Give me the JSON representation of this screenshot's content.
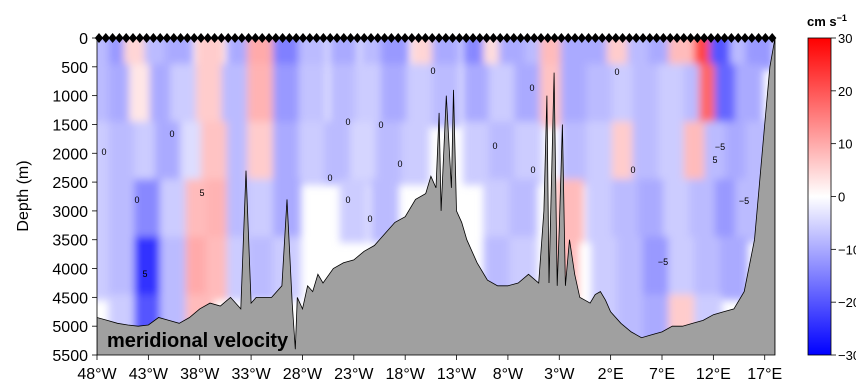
{
  "chart_data": {
    "type": "heatmap",
    "panel_label": "meridional velocity",
    "ylabel": "Depth (m)",
    "colorbar_unit": "cm s",
    "colorbar_unit_exp": "−1",
    "x_ticks": [
      "48°W",
      "43°W",
      "38°W",
      "33°W",
      "28°W",
      "23°W",
      "18°W",
      "13°W",
      "8°W",
      "3°W",
      "2°E",
      "7°E",
      "12°E",
      "17°E"
    ],
    "x_values": [
      -48,
      -43,
      -38,
      -33,
      -28,
      -23,
      -18,
      -13,
      -8,
      -3,
      2,
      7,
      12,
      17
    ],
    "xlim": [
      -48,
      18
    ],
    "y_ticks": [
      "0",
      "500",
      "1000",
      "1500",
      "2000",
      "2500",
      "3000",
      "3500",
      "4000",
      "4500",
      "5000",
      "5500"
    ],
    "y_values": [
      0,
      500,
      1000,
      1500,
      2000,
      2500,
      3000,
      3500,
      4000,
      4500,
      5000,
      5500
    ],
    "ylim": [
      0,
      5500
    ],
    "colorbar_ticks": [
      "30",
      "20",
      "10",
      "0",
      "−10",
      "−20",
      "−30"
    ],
    "colorbar_values": [
      30,
      20,
      10,
      0,
      -10,
      -20,
      -30
    ],
    "clim": [
      -30,
      30
    ],
    "colors": {
      "positive": "#ff0000",
      "negative": "#0000ff",
      "neutral": "#ffffff",
      "bathymetry": "#a0a0a0"
    },
    "velocity_cells": [
      {
        "lon": -48,
        "depth": 0,
        "v": -8
      },
      {
        "lon": -45.5,
        "depth": 0,
        "v": -12
      },
      {
        "lon": -44,
        "depth": 0,
        "v": 5
      },
      {
        "lon": -42,
        "depth": 0,
        "v": -8
      },
      {
        "lon": -40,
        "depth": 0,
        "v": -10
      },
      {
        "lon": -37,
        "depth": 0,
        "v": 6
      },
      {
        "lon": -34,
        "depth": 0,
        "v": -10
      },
      {
        "lon": -32,
        "depth": 0,
        "v": 10
      },
      {
        "lon": -29.5,
        "depth": 0,
        "v": -15
      },
      {
        "lon": -27,
        "depth": 0,
        "v": -8
      },
      {
        "lon": -24,
        "depth": 0,
        "v": -10
      },
      {
        "lon": -21,
        "depth": 0,
        "v": -8
      },
      {
        "lon": -19,
        "depth": 0,
        "v": -12
      },
      {
        "lon": -16,
        "depth": 0,
        "v": 5
      },
      {
        "lon": -14,
        "depth": 0,
        "v": -10
      },
      {
        "lon": -11,
        "depth": 0,
        "v": -14
      },
      {
        "lon": -9,
        "depth": 0,
        "v": 4
      },
      {
        "lon": -7.5,
        "depth": 0,
        "v": -10
      },
      {
        "lon": -5,
        "depth": 0,
        "v": -8
      },
      {
        "lon": -3.5,
        "depth": 0,
        "v": 8
      },
      {
        "lon": -1.5,
        "depth": 0,
        "v": -10
      },
      {
        "lon": 1,
        "depth": 0,
        "v": -10
      },
      {
        "lon": 3,
        "depth": 0,
        "v": 6
      },
      {
        "lon": 5,
        "depth": 0,
        "v": -8
      },
      {
        "lon": 7,
        "depth": 0,
        "v": -10
      },
      {
        "lon": 9,
        "depth": 0,
        "v": 8
      },
      {
        "lon": 11.5,
        "depth": 0,
        "v": 22
      },
      {
        "lon": 13,
        "depth": 0,
        "v": -20
      },
      {
        "lon": 15,
        "depth": 0,
        "v": -8
      },
      {
        "lon": 16.5,
        "depth": 0,
        "v": -12
      },
      {
        "lon": -48,
        "depth": 1000,
        "v": -8
      },
      {
        "lon": -45.5,
        "depth": 1000,
        "v": -10
      },
      {
        "lon": -43.5,
        "depth": 1000,
        "v": 3
      },
      {
        "lon": -41.5,
        "depth": 1000,
        "v": -10
      },
      {
        "lon": -39.5,
        "depth": 1000,
        "v": -6
      },
      {
        "lon": -37,
        "depth": 1000,
        "v": 6
      },
      {
        "lon": -34.5,
        "depth": 1000,
        "v": -8
      },
      {
        "lon": -32,
        "depth": 1000,
        "v": 9
      },
      {
        "lon": -29.5,
        "depth": 1000,
        "v": -12
      },
      {
        "lon": -27,
        "depth": 1000,
        "v": -7
      },
      {
        "lon": -24,
        "depth": 1000,
        "v": -8
      },
      {
        "lon": -21.5,
        "depth": 1000,
        "v": -6
      },
      {
        "lon": -19,
        "depth": 1000,
        "v": -10
      },
      {
        "lon": -16.5,
        "depth": 1000,
        "v": -6
      },
      {
        "lon": -14,
        "depth": 1000,
        "v": -8
      },
      {
        "lon": -11,
        "depth": 1000,
        "v": -10
      },
      {
        "lon": -8.5,
        "depth": 1000,
        "v": -6
      },
      {
        "lon": -6,
        "depth": 1000,
        "v": -10
      },
      {
        "lon": -3.5,
        "depth": 1000,
        "v": 7
      },
      {
        "lon": -1.5,
        "depth": 1000,
        "v": -10
      },
      {
        "lon": 1,
        "depth": 1000,
        "v": -8
      },
      {
        "lon": 3.5,
        "depth": 1000,
        "v": -6
      },
      {
        "lon": 5.5,
        "depth": 1000,
        "v": -8
      },
      {
        "lon": 8,
        "depth": 1000,
        "v": -6
      },
      {
        "lon": 10.5,
        "depth": 1000,
        "v": -8
      },
      {
        "lon": 12,
        "depth": 1000,
        "v": 18
      },
      {
        "lon": 13.5,
        "depth": 1000,
        "v": -18
      },
      {
        "lon": 15.5,
        "depth": 1000,
        "v": -10
      },
      {
        "lon": -48,
        "depth": 2000,
        "v": -6
      },
      {
        "lon": -45.5,
        "depth": 2000,
        "v": -8
      },
      {
        "lon": -43,
        "depth": 2000,
        "v": -6
      },
      {
        "lon": -41,
        "depth": 2000,
        "v": -10
      },
      {
        "lon": -38.5,
        "depth": 2000,
        "v": -4
      },
      {
        "lon": -36.5,
        "depth": 2000,
        "v": 7
      },
      {
        "lon": -34,
        "depth": 2000,
        "v": -8
      },
      {
        "lon": -32,
        "depth": 2000,
        "v": 6
      },
      {
        "lon": -29.5,
        "depth": 2000,
        "v": -10
      },
      {
        "lon": -27,
        "depth": 2000,
        "v": -6
      },
      {
        "lon": -24.5,
        "depth": 2000,
        "v": -8
      },
      {
        "lon": -22,
        "depth": 2000,
        "v": -5
      },
      {
        "lon": -19.5,
        "depth": 2000,
        "v": -8
      },
      {
        "lon": -17,
        "depth": 2000,
        "v": -6
      },
      {
        "lon": -11,
        "depth": 2000,
        "v": -6
      },
      {
        "lon": -8.5,
        "depth": 2000,
        "v": -8
      },
      {
        "lon": -6,
        "depth": 2000,
        "v": -6
      },
      {
        "lon": -1.5,
        "depth": 2000,
        "v": -8
      },
      {
        "lon": 1,
        "depth": 2000,
        "v": -6
      },
      {
        "lon": 3.5,
        "depth": 2000,
        "v": 6
      },
      {
        "lon": 5.5,
        "depth": 2000,
        "v": -8
      },
      {
        "lon": 8,
        "depth": 2000,
        "v": -6
      },
      {
        "lon": 10.5,
        "depth": 2000,
        "v": 8
      },
      {
        "lon": 12.5,
        "depth": 2000,
        "v": -8
      },
      {
        "lon": 14.5,
        "depth": 2000,
        "v": -10
      },
      {
        "lon": 16.5,
        "depth": 2000,
        "v": -8
      },
      {
        "lon": -48,
        "depth": 3000,
        "v": -6
      },
      {
        "lon": -45.5,
        "depth": 3000,
        "v": -8
      },
      {
        "lon": -43,
        "depth": 3000,
        "v": -14
      },
      {
        "lon": -40.5,
        "depth": 3000,
        "v": -6
      },
      {
        "lon": -38,
        "depth": 3000,
        "v": 8
      },
      {
        "lon": -36,
        "depth": 3000,
        "v": 9
      },
      {
        "lon": -34,
        "depth": 3000,
        "v": -8
      },
      {
        "lon": -32,
        "depth": 3000,
        "v": -6
      },
      {
        "lon": -29.5,
        "depth": 3000,
        "v": -10
      },
      {
        "lon": -23,
        "depth": 3000,
        "v": -6
      },
      {
        "lon": -20,
        "depth": 3000,
        "v": -8
      },
      {
        "lon": -9,
        "depth": 3000,
        "v": -6
      },
      {
        "lon": -6.5,
        "depth": 3000,
        "v": -8
      },
      {
        "lon": -2,
        "depth": 3000,
        "v": 8
      },
      {
        "lon": 1,
        "depth": 3000,
        "v": -6
      },
      {
        "lon": 3.5,
        "depth": 3000,
        "v": -8
      },
      {
        "lon": 6,
        "depth": 3000,
        "v": -10
      },
      {
        "lon": 8.5,
        "depth": 3000,
        "v": -6
      },
      {
        "lon": 11,
        "depth": 3000,
        "v": -8
      },
      {
        "lon": 13.5,
        "depth": 3000,
        "v": -12
      },
      {
        "lon": 15.5,
        "depth": 3000,
        "v": -8
      },
      {
        "lon": -48,
        "depth": 4000,
        "v": -6
      },
      {
        "lon": -45.5,
        "depth": 4000,
        "v": -8
      },
      {
        "lon": -43,
        "depth": 4000,
        "v": -24
      },
      {
        "lon": -40.5,
        "depth": 4000,
        "v": -8
      },
      {
        "lon": -38,
        "depth": 4000,
        "v": 10
      },
      {
        "lon": -36,
        "depth": 4000,
        "v": 8
      },
      {
        "lon": -34,
        "depth": 4000,
        "v": -6
      },
      {
        "lon": -32,
        "depth": 4000,
        "v": -8
      },
      {
        "lon": -29.5,
        "depth": 4000,
        "v": -6
      },
      {
        "lon": -9,
        "depth": 4000,
        "v": -8
      },
      {
        "lon": -6.5,
        "depth": 4000,
        "v": -6
      },
      {
        "lon": -2.5,
        "depth": 4000,
        "v": 8
      },
      {
        "lon": 1.5,
        "depth": 4000,
        "v": -6
      },
      {
        "lon": 4,
        "depth": 4000,
        "v": -8
      },
      {
        "lon": 6.5,
        "depth": 4000,
        "v": -12
      },
      {
        "lon": 9,
        "depth": 4000,
        "v": -6
      },
      {
        "lon": 11.5,
        "depth": 4000,
        "v": -8
      },
      {
        "lon": 14,
        "depth": 4000,
        "v": -10
      },
      {
        "lon": -45.5,
        "depth": 5000,
        "v": -6
      },
      {
        "lon": -43,
        "depth": 5000,
        "v": -20
      },
      {
        "lon": -40.5,
        "depth": 5000,
        "v": -8
      },
      {
        "lon": -38,
        "depth": 5000,
        "v": 8
      },
      {
        "lon": 1.5,
        "depth": 5000,
        "v": -6
      },
      {
        "lon": 4,
        "depth": 5000,
        "v": -8
      },
      {
        "lon": 6.5,
        "depth": 5000,
        "v": -10
      },
      {
        "lon": 9,
        "depth": 5000,
        "v": 6
      },
      {
        "lon": 11.5,
        "depth": 5000,
        "v": -6
      }
    ],
    "bathymetry": {
      "lon": [
        -48,
        -47,
        -46,
        -45,
        -44,
        -43,
        -42,
        -41,
        -40,
        -39,
        -38,
        -37,
        -36,
        -35,
        -34,
        -33.5,
        -33,
        -32.5,
        -31,
        -30,
        -29.5,
        -29,
        -28.7,
        -28.5,
        -28,
        -27.5,
        -27,
        -26.5,
        -26,
        -25,
        -24,
        -23,
        -22,
        -21,
        -20,
        -19,
        -18,
        -17,
        -16,
        -15.5,
        -15,
        -14.7,
        -14.5,
        -14,
        -13.5,
        -13.3,
        -13,
        -12.5,
        -12,
        -11,
        -10,
        -9,
        -8,
        -7,
        -6,
        -5,
        -4.5,
        -4.2,
        -4,
        -3.5,
        -3.2,
        -3,
        -2.7,
        -2.4,
        -2,
        -1.5,
        -1,
        -0.5,
        0,
        0.5,
        1,
        1.5,
        2,
        3,
        4,
        5,
        6,
        7,
        8,
        9,
        10,
        11,
        12,
        13,
        14,
        15,
        16,
        17,
        17.5,
        18
      ],
      "depth": [
        4850,
        4900,
        4950,
        4980,
        5000,
        4980,
        4850,
        4900,
        4950,
        4850,
        4700,
        4600,
        4650,
        4500,
        4700,
        2300,
        4600,
        4500,
        4500,
        4300,
        2800,
        4600,
        5400,
        4500,
        4700,
        4300,
        4400,
        4100,
        4250,
        4000,
        3900,
        3850,
        3700,
        3600,
        3400,
        3200,
        3100,
        2800,
        2700,
        2400,
        2600,
        1300,
        3000,
        1000,
        2600,
        900,
        3000,
        3200,
        3500,
        3900,
        4200,
        4300,
        4300,
        4250,
        4100,
        4250,
        3000,
        1000,
        4250,
        600,
        4300,
        3300,
        1500,
        4300,
        3500,
        4100,
        4500,
        4550,
        4600,
        4450,
        4400,
        4550,
        4750,
        4950,
        5100,
        5200,
        5150,
        5100,
        5000,
        5000,
        4950,
        4900,
        4800,
        4750,
        4700,
        4400,
        3500,
        1500,
        500,
        0
      ]
    },
    "contour_labels": [
      "0",
      "0",
      "0",
      "0",
      "0",
      "0",
      "0",
      "0",
      "0",
      "0",
      "0",
      "0",
      "0",
      "0",
      "0",
      "5",
      "5",
      "5",
      "−5",
      "−5",
      "−5"
    ]
  }
}
